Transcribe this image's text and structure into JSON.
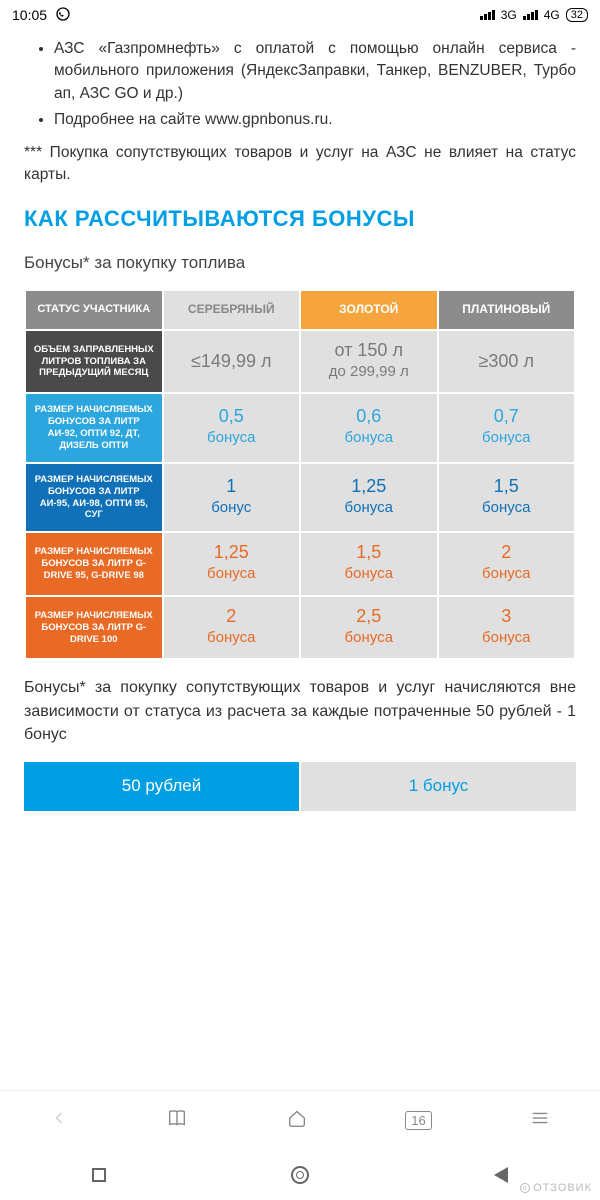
{
  "status": {
    "time": "10:05",
    "net1": "3G",
    "net2": "4G",
    "battery": "32"
  },
  "intro": {
    "bullet1": "АЗС «Газпромнефть» с оплатой с помощью онлайн сервиса - мобильного приложения (ЯндексЗаправки, Танкер, BENZUBER, Турбо ап, АЗС GO и др.)",
    "bullet2": "Подробнее на сайте www.gpnbonus.ru.",
    "footnote": "*** Покупка сопутствующих товаров и услуг на АЗС не влияет на статус карты."
  },
  "section_title": "КАК РАССЧИТЫВАЮТСЯ БОНУСЫ",
  "subtitle": "Бонусы* за покупку топлива",
  "table": {
    "headers": {
      "status": "СТАТУС УЧАСТНИКА",
      "silver": "СЕРЕБРЯНЫЙ",
      "gold": "ЗОЛОТОЙ",
      "platinum": "ПЛАТИНОВЫЙ"
    },
    "rows": [
      {
        "label": "ОБЪЕМ ЗАПРАВЛЕННЫХ ЛИТРОВ ТОПЛИВА ЗА ПРЕДЫДУЩИЙ МЕСЯЦ",
        "label_bg": "c-dark",
        "color": "cell-gray",
        "cells": [
          {
            "num": "≤149,99 л",
            "unit": ""
          },
          {
            "num": "от 150 л",
            "unit": "до 299,99 л"
          },
          {
            "num": "≥300 л",
            "unit": ""
          }
        ]
      },
      {
        "label": "РАЗМЕР НАЧИСЛЯЕМЫХ БОНУСОВ ЗА ЛИТР АИ-92, ОПТИ 92, ДТ, ДИЗЕЛЬ ОПТИ",
        "label_bg": "c-blue1",
        "color": "cell-blue",
        "cells": [
          {
            "num": "0,5",
            "unit": "бонуса"
          },
          {
            "num": "0,6",
            "unit": "бонуса"
          },
          {
            "num": "0,7",
            "unit": "бонуса"
          }
        ]
      },
      {
        "label": "РАЗМЕР НАЧИСЛЯЕМЫХ БОНУСОВ ЗА ЛИТР АИ-95, АИ-98, ОПТИ 95, СУГ",
        "label_bg": "c-blue2",
        "color": "cell-blue2",
        "cells": [
          {
            "num": "1",
            "unit": "бонус"
          },
          {
            "num": "1,25",
            "unit": "бонуса"
          },
          {
            "num": "1,5",
            "unit": "бонуса"
          }
        ]
      },
      {
        "label": "РАЗМЕР НАЧИСЛЯЕМЫХ БОНУСОВ ЗА ЛИТР G-DRIVE 95, G-DRIVE 98",
        "label_bg": "c-orange1",
        "color": "cell-orange",
        "cells": [
          {
            "num": "1,25",
            "unit": "бонуса"
          },
          {
            "num": "1,5",
            "unit": "бонуса"
          },
          {
            "num": "2",
            "unit": "бонуса"
          }
        ]
      },
      {
        "label": "РАЗМЕР НАЧИСЛЯЕМЫХ БОНУСОВ ЗА ЛИТР G-DRIVE 100",
        "label_bg": "c-orange2",
        "color": "cell-orange",
        "cells": [
          {
            "num": "2",
            "unit": "бонуса"
          },
          {
            "num": "2,5",
            "unit": "бонуса"
          },
          {
            "num": "3",
            "unit": "бонуса"
          }
        ]
      }
    ]
  },
  "after_table": "Бонусы* за покупку сопутствующих товаров и услуг начисляются вне зависимости от статуса из расчета за каждые потраченные 50 рублей - 1 бонус",
  "bonus_bar": {
    "left": "50 рублей",
    "right": "1 бонус"
  },
  "browser": {
    "tabs": "16"
  },
  "watermark": "ОТЗОВИК"
}
